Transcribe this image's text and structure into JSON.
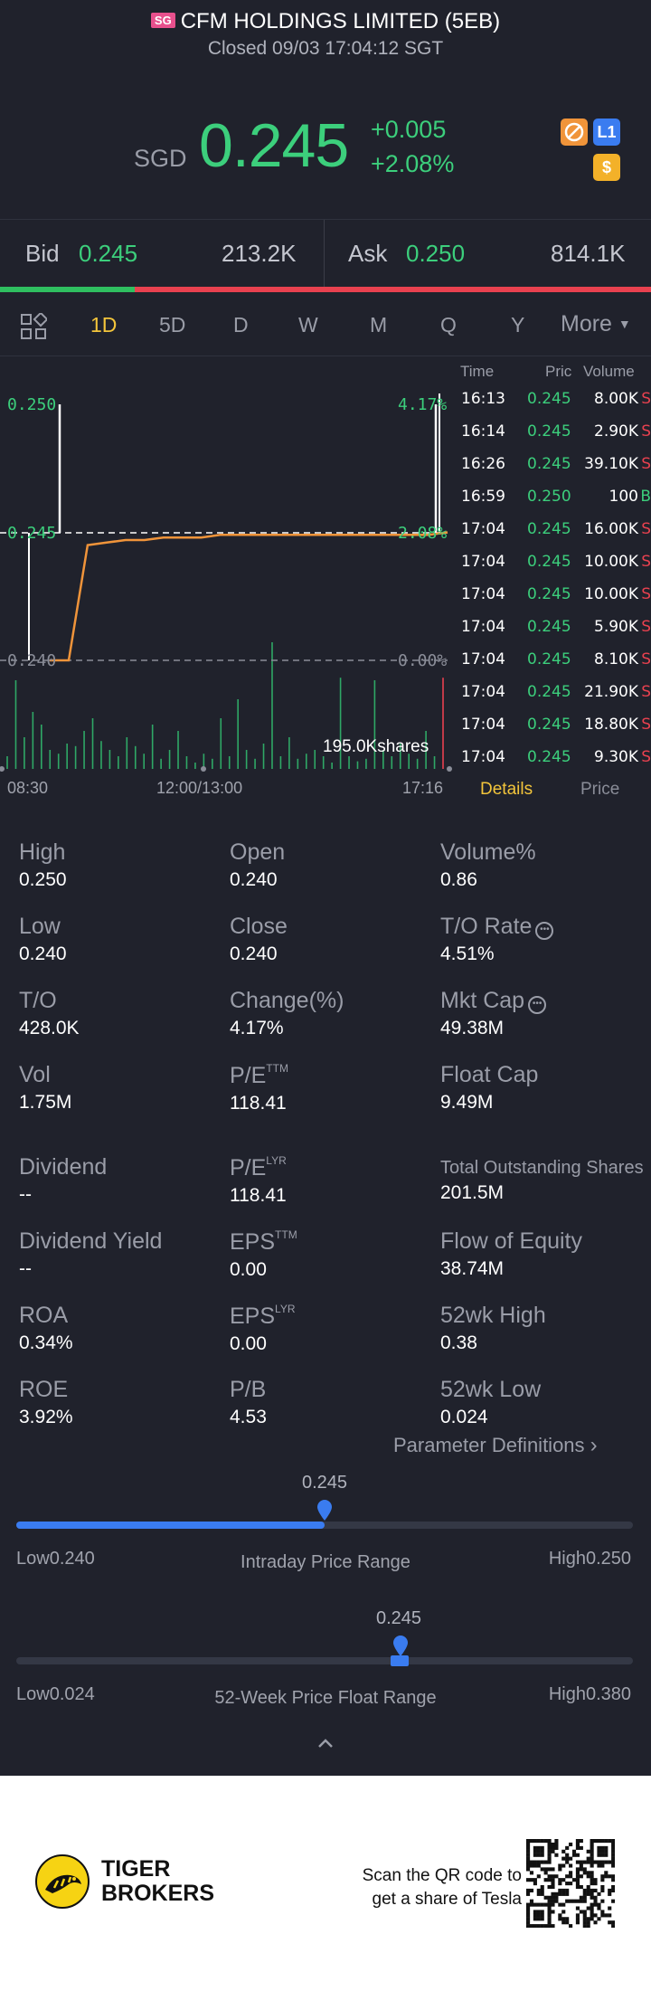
{
  "header": {
    "market_flag": "SG",
    "title": "CFM HOLDINGS LIMITED (5EB)",
    "status": "Closed 09/03 17:04:12 SGT",
    "currency": "SGD",
    "price": "0.245",
    "change": "+0.005",
    "change_pct": "+2.08%",
    "badges": [
      {
        "icon": "no-margin-icon",
        "color": "#f0943a"
      },
      {
        "icon": "level-1-icon",
        "label": "L1",
        "color": "#3a7cf0"
      },
      {
        "icon": "dollar-icon",
        "label": "$",
        "color": "#f3b129"
      }
    ]
  },
  "bidask": {
    "bid_label": "Bid",
    "bid_price": "0.245",
    "bid_size": "213.2K",
    "ask_label": "Ask",
    "ask_price": "0.250",
    "ask_size": "814.1K",
    "bid_share": 0.207
  },
  "tabs": {
    "grid_icon": "grid-icon",
    "items": [
      "1D",
      "5D",
      "D",
      "W",
      "M",
      "Q",
      "Y"
    ],
    "active": "1D",
    "more": "More"
  },
  "chart_data": {
    "type": "line",
    "y_left_labels": [
      "0.250",
      "0.245",
      "0.240"
    ],
    "y_right_labels": [
      "4.17%",
      "2.08%",
      "0.00%"
    ],
    "x_labels": [
      "08:30",
      "12:00/13:00",
      "17:16"
    ],
    "ylim": [
      0.24,
      0.25
    ],
    "reference_price": 0.24,
    "price_series": [
      0.24,
      0.24,
      0.2445,
      0.2446,
      0.2447,
      0.2447,
      0.2448,
      0.2448,
      0.2448,
      0.2449,
      0.2449,
      0.2449,
      0.2449,
      0.2449,
      0.2449,
      0.2449,
      0.2449,
      0.2449,
      0.2449,
      0.2449,
      0.2449,
      0.245
    ],
    "volume_note": "195.0Kshares",
    "volume_bars": [
      0.1,
      0.7,
      0.25,
      0.45,
      0.35,
      0.15,
      0.12,
      0.2,
      0.18,
      0.3,
      0.4,
      0.22,
      0.15,
      0.1,
      0.25,
      0.18,
      0.12,
      0.35,
      0.08,
      0.15,
      0.3,
      0.1,
      0.05,
      0.12,
      0.08,
      0.4,
      0.1,
      0.55,
      0.15,
      0.08,
      0.2,
      1.0,
      0.1,
      0.25,
      0.08,
      0.12,
      0.15,
      0.1,
      0.05,
      0.72,
      0.1,
      0.06,
      0.08,
      0.7,
      0.15,
      0.1,
      0.2,
      0.12,
      0.08,
      0.3,
      0.1,
      0.72
    ]
  },
  "trades": {
    "headers": {
      "time": "Time",
      "price": "Pric",
      "volume": "Volume"
    },
    "rows": [
      {
        "time": "16:13",
        "price": "0.245",
        "vol": "8.00K",
        "side": "S"
      },
      {
        "time": "16:14",
        "price": "0.245",
        "vol": "2.90K",
        "side": "S"
      },
      {
        "time": "16:26",
        "price": "0.245",
        "vol": "39.10K",
        "side": "S"
      },
      {
        "time": "16:59",
        "price": "0.250",
        "vol": "100",
        "side": "B"
      },
      {
        "time": "17:04",
        "price": "0.245",
        "vol": "16.00K",
        "side": "S"
      },
      {
        "time": "17:04",
        "price": "0.245",
        "vol": "10.00K",
        "side": "S"
      },
      {
        "time": "17:04",
        "price": "0.245",
        "vol": "10.00K",
        "side": "S"
      },
      {
        "time": "17:04",
        "price": "0.245",
        "vol": "5.90K",
        "side": "S"
      },
      {
        "time": "17:04",
        "price": "0.245",
        "vol": "8.10K",
        "side": "S"
      },
      {
        "time": "17:04",
        "price": "0.245",
        "vol": "21.90K",
        "side": "S"
      },
      {
        "time": "17:04",
        "price": "0.245",
        "vol": "18.80K",
        "side": "S"
      },
      {
        "time": "17:04",
        "price": "0.245",
        "vol": "9.30K",
        "side": "S"
      }
    ],
    "tab_details": "Details",
    "tab_price": "Price"
  },
  "stats": {
    "high": {
      "label": "High",
      "value": "0.250"
    },
    "open": {
      "label": "Open",
      "value": "0.240"
    },
    "volume_pct": {
      "label": "Volume%",
      "value": "0.86"
    },
    "low": {
      "label": "Low",
      "value": "0.240"
    },
    "close": {
      "label": "Close",
      "value": "0.240"
    },
    "to_rate": {
      "label": "T/O Rate",
      "value": "4.51%"
    },
    "to": {
      "label": "T/O",
      "value": "428.0K"
    },
    "change_pct": {
      "label": "Change(%)",
      "value": "4.17%"
    },
    "mkt_cap": {
      "label": "Mkt Cap",
      "value": "49.38M"
    },
    "vol": {
      "label": "Vol",
      "value": "1.75M"
    },
    "pe_ttm": {
      "label": "P/E",
      "sup": "TTM",
      "value": "118.41"
    },
    "float_cap": {
      "label": "Float Cap",
      "value": "9.49M"
    },
    "dividend": {
      "label": "Dividend",
      "value": "--"
    },
    "pe_lyr": {
      "label": "P/E",
      "sup": "LYR",
      "value": "118.41"
    },
    "total_shares": {
      "label": "Total Outstanding Shares",
      "value": "201.5M"
    },
    "div_yield": {
      "label": "Dividend Yield",
      "value": "--"
    },
    "eps_ttm": {
      "label": "EPS",
      "sup": "TTM",
      "value": "0.00"
    },
    "flow_equity": {
      "label": "Flow of Equity",
      "value": "38.74M"
    },
    "roa": {
      "label": "ROA",
      "value": "0.34%"
    },
    "eps_lyr": {
      "label": "EPS",
      "sup": "LYR",
      "value": "0.00"
    },
    "wk52_high": {
      "label": "52wk High",
      "value": "0.38"
    },
    "roe": {
      "label": "ROE",
      "value": "3.92%"
    },
    "pb": {
      "label": "P/B",
      "value": "4.53"
    },
    "wk52_low": {
      "label": "52wk Low",
      "value": "0.024"
    },
    "param_def": "Parameter Definitions"
  },
  "ranges": {
    "intraday": {
      "current": "0.245",
      "low": "Low0.240",
      "high": "High0.250",
      "title": "Intraday Price Range",
      "position": 0.5
    },
    "week52": {
      "current": "0.245",
      "low": "Low0.024",
      "high": "High0.380",
      "title": "52-Week Price Float Range",
      "position": 0.62
    }
  },
  "footer": {
    "brand_line1": "TIGER",
    "brand_line2": "BROKERS",
    "scan_line1": "Scan the QR code to",
    "scan_line2": "get a share of Tesla"
  }
}
